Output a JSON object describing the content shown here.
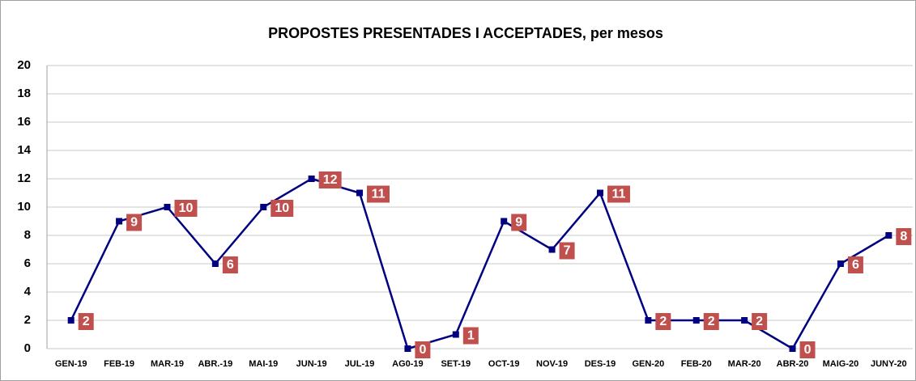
{
  "chart_data": {
    "type": "line",
    "title": "PROPOSTES PRESENTADES I ACCEPTADES, per mesos",
    "categories": [
      "GEN-19",
      "FEB-19",
      "MAR-19",
      "ABR.-19",
      "MAI-19",
      "JUN-19",
      "JUL-19",
      "AG0-19",
      "SET-19",
      "OCT-19",
      "NOV-19",
      "DES-19",
      "GEN-20",
      "FEB-20",
      "MAR-20",
      "ABR-20",
      "MAIG-20",
      "JUNY-20"
    ],
    "values": [
      2,
      9,
      10,
      6,
      10,
      12,
      11,
      0,
      1,
      9,
      7,
      11,
      2,
      2,
      2,
      0,
      6,
      8
    ],
    "color": "#000080",
    "label_color": "#c0504d",
    "ylim": [
      0,
      20
    ],
    "yticks": [
      0,
      2,
      4,
      6,
      8,
      10,
      12,
      14,
      16,
      18,
      20
    ],
    "grid": true
  }
}
